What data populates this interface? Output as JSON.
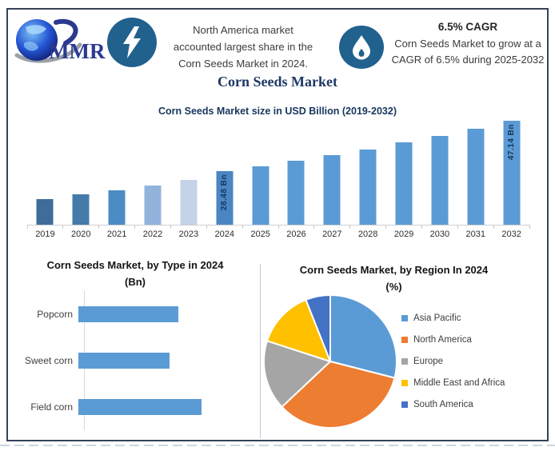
{
  "logo": {
    "text": "MMR"
  },
  "header": {
    "highlight_left": {
      "icon": "lightning-icon",
      "lines": [
        "North America market",
        "accounted largest share in the",
        "Corn Seeds Market in 2024."
      ]
    },
    "highlight_right": {
      "icon": "flame-icon",
      "heading": "6.5% CAGR",
      "lines": [
        "Corn Seeds Market to grow at a",
        "CAGR of 6.5% during 2025-2032"
      ]
    }
  },
  "page_title": "Corn Seeds Market",
  "colors": {
    "primary_blue": "#5b9bd5",
    "orange": "#ed7d31",
    "gray": "#a5a5a5",
    "yellow": "#ffc000",
    "dark_blue": "#4472c4",
    "navy_text": "#1f3864",
    "badge_circle": "#21618e",
    "frame_border": "#36425a"
  },
  "chart_data": [
    {
      "type": "bar",
      "title": "Corn Seeds Market size in USD Billion (2019-2032)",
      "unit": "USD Billion",
      "categories": [
        "2019",
        "2020",
        "2021",
        "2022",
        "2023",
        "2024",
        "2025",
        "2026",
        "2027",
        "2028",
        "2029",
        "2030",
        "2031",
        "2032"
      ],
      "values": [
        18.4,
        20.0,
        21.6,
        23.4,
        25.5,
        28.48,
        30.33,
        32.3,
        34.4,
        36.64,
        39.02,
        41.55,
        44.26,
        47.14
      ],
      "values_note": "only 2024 (28.48 Bn) and 2032 (47.14 Bn) are labeled; other values estimated from bar heights / 6.5% CAGR",
      "data_labels": {
        "2024": "28.48 Bn",
        "2032": "47.14 Bn"
      },
      "bar_colors": [
        "#3f6c99",
        "#447ba9",
        "#4d8bc4",
        "#92b4dc",
        "#c4d3e8",
        "#4a86c4",
        "#5b9bd5",
        "#5b9bd5",
        "#5b9bd5",
        "#5b9bd5",
        "#5b9bd5",
        "#5b9bd5",
        "#5b9bd5",
        "#5b9bd5"
      ],
      "ylim": [
        9,
        50
      ],
      "grid": false,
      "legend": false
    },
    {
      "type": "bar",
      "orientation": "horizontal",
      "title": "Corn Seeds Market, by Type in 2024",
      "subtitle": "(Bn)",
      "categories": [
        "Popcorn",
        "Sweet corn",
        "Field corn"
      ],
      "values": [
        0.81,
        0.74,
        1.0
      ],
      "values_note": "relative bar lengths (fraction of longest bar); numeric axis not labeled in image",
      "bar_color": "#5b9bd5",
      "grid": false,
      "legend": false
    },
    {
      "type": "pie",
      "title": "Corn Seeds Market, by Region In 2024",
      "subtitle": "(%)",
      "labels": [
        "Asia Pacific",
        "North America",
        "Europe",
        "Middle East and Africa",
        "South America"
      ],
      "values": [
        29,
        34,
        17,
        14,
        6
      ],
      "values_note": "percent shares estimated from slice angles; not labeled in image",
      "colors": [
        "#5b9bd5",
        "#ed7d31",
        "#a5a5a5",
        "#ffc000",
        "#4472c4"
      ],
      "legend_position": "right",
      "start_angle_deg": 0
    }
  ]
}
